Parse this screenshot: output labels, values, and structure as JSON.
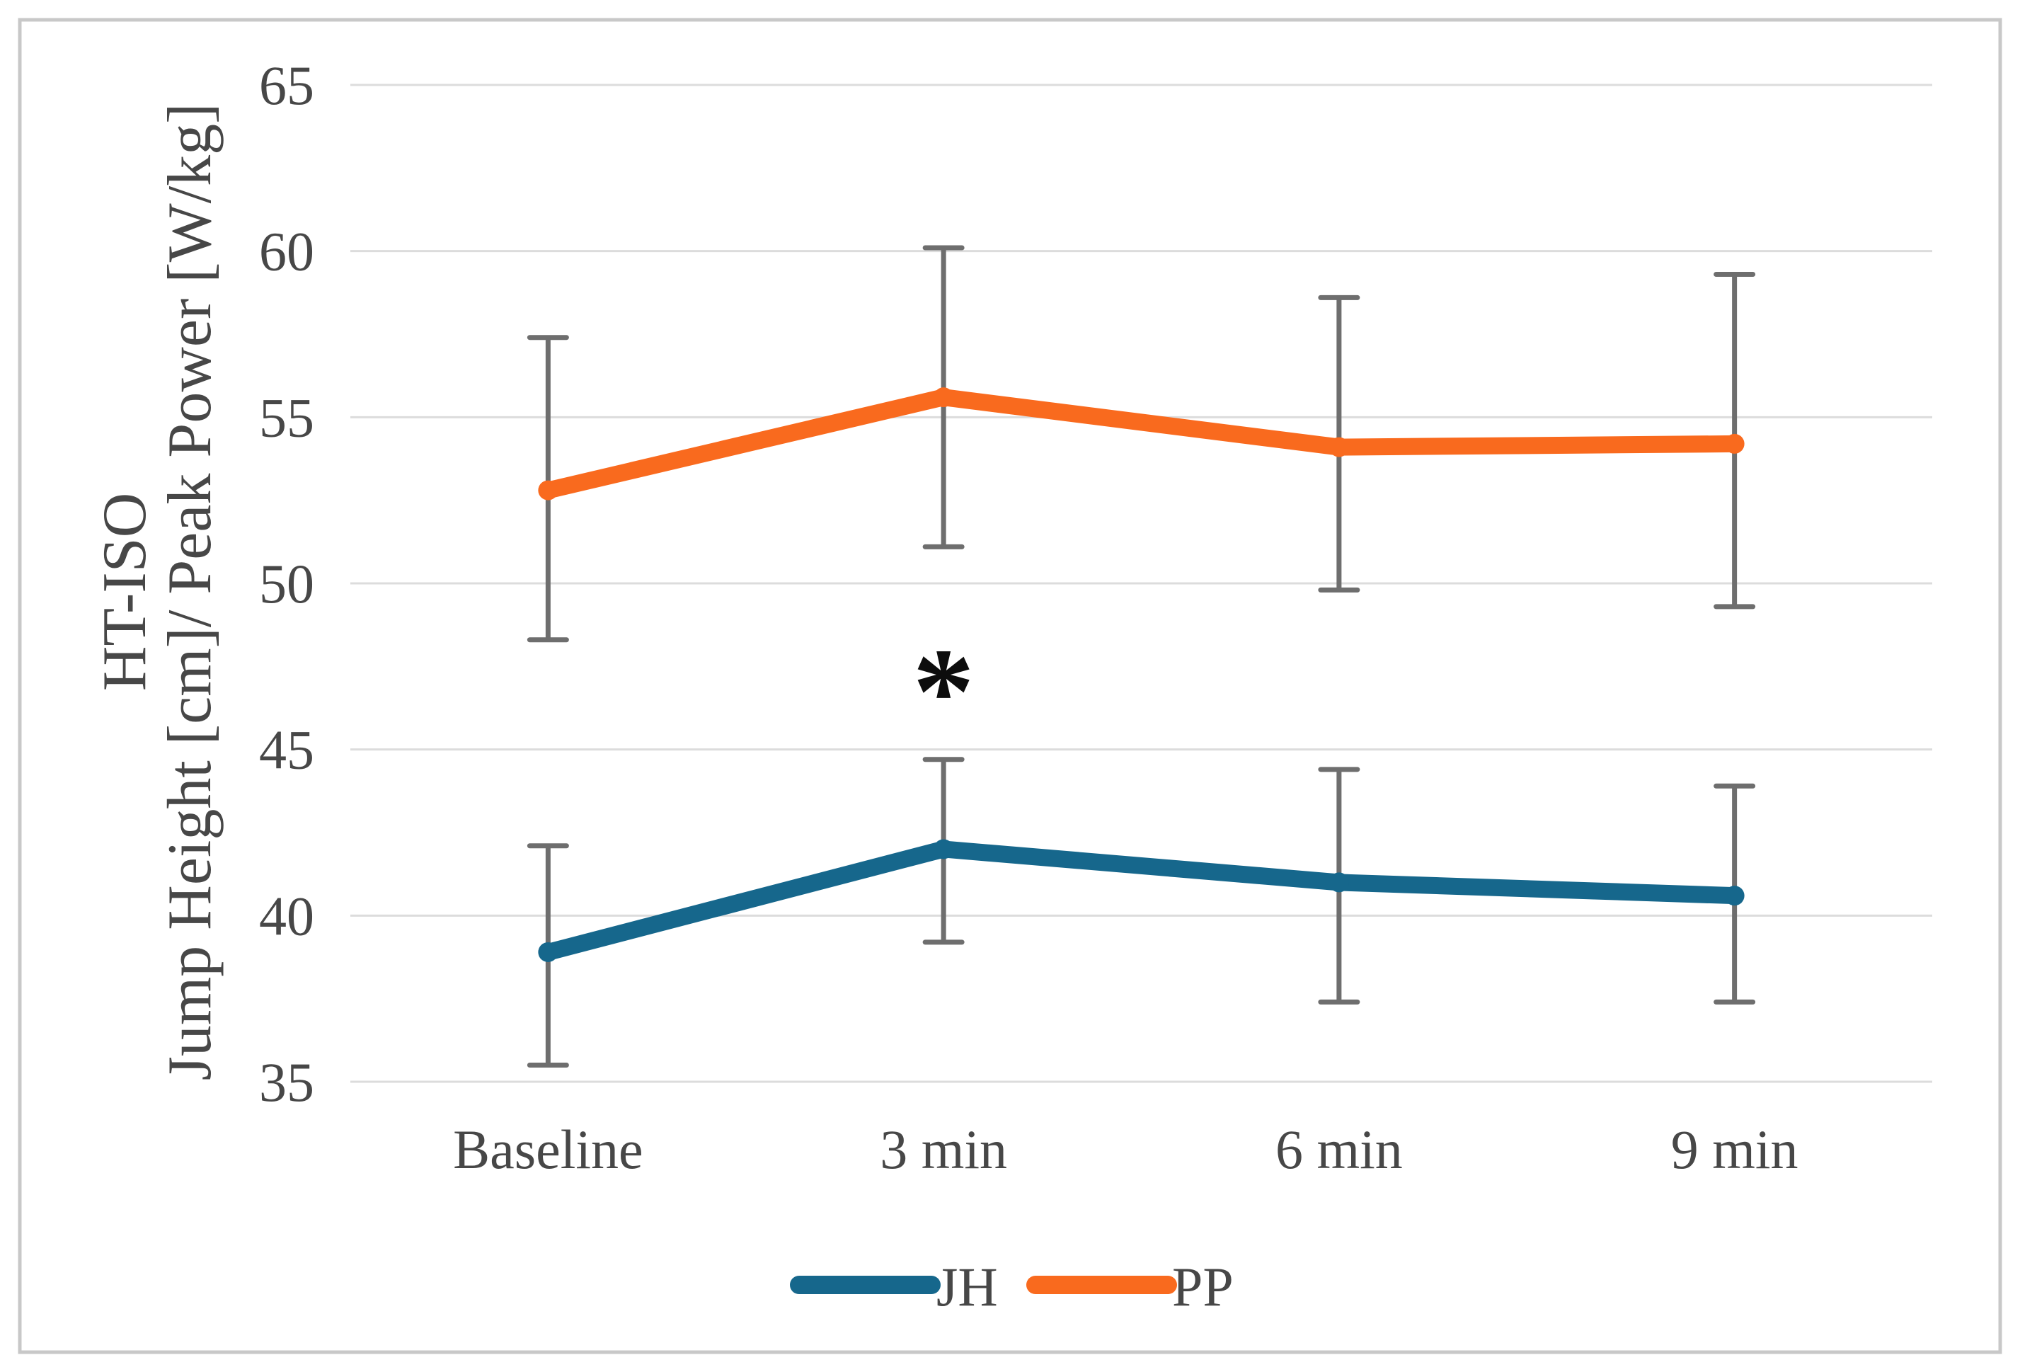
{
  "figure": {
    "background_color": "#ffffff",
    "border_color": "#c8c8c8"
  },
  "chart_data": {
    "type": "line",
    "title": "",
    "categories": [
      "Baseline",
      "3 min",
      "6 min",
      "9 min"
    ],
    "y_axis": {
      "label_line1": "HT-ISO",
      "label_line2": "Jump Height [cm]/ Peak Power [W/kg]",
      "min": 35,
      "max": 65,
      "tick_step": 5,
      "ticks": [
        65,
        60,
        55,
        50,
        45,
        40,
        35
      ]
    },
    "x_axis": {
      "tick_labels": [
        "Baseline",
        "3 min",
        "6 min",
        "9 min"
      ]
    },
    "grid": true,
    "gridline_color": "#dcdcdc",
    "axis_text_color": "#474747",
    "error_bar_color": "#6e6e6e",
    "annotation": {
      "text": "*",
      "meaning": "significant-difference-marker",
      "category_index": 1,
      "y_value": 47.2,
      "color": "#0d0d0d"
    },
    "series": [
      {
        "name": "JH",
        "color": "#16678c",
        "values": [
          38.9,
          42.0,
          41.0,
          40.6
        ],
        "error_upper": [
          42.1,
          44.7,
          44.4,
          43.9
        ],
        "error_lower": [
          35.5,
          39.2,
          37.4,
          37.4
        ]
      },
      {
        "name": "PP",
        "color": "#f96a1e",
        "values": [
          52.8,
          55.6,
          54.1,
          54.2
        ],
        "error_upper": [
          57.4,
          60.1,
          58.6,
          59.3
        ],
        "error_lower": [
          48.3,
          51.1,
          49.8,
          49.3
        ]
      }
    ],
    "legend": {
      "position": "bottom-center",
      "entries": [
        {
          "label": "JH",
          "color": "#16678c"
        },
        {
          "label": "PP",
          "color": "#f96a1e"
        }
      ]
    }
  }
}
